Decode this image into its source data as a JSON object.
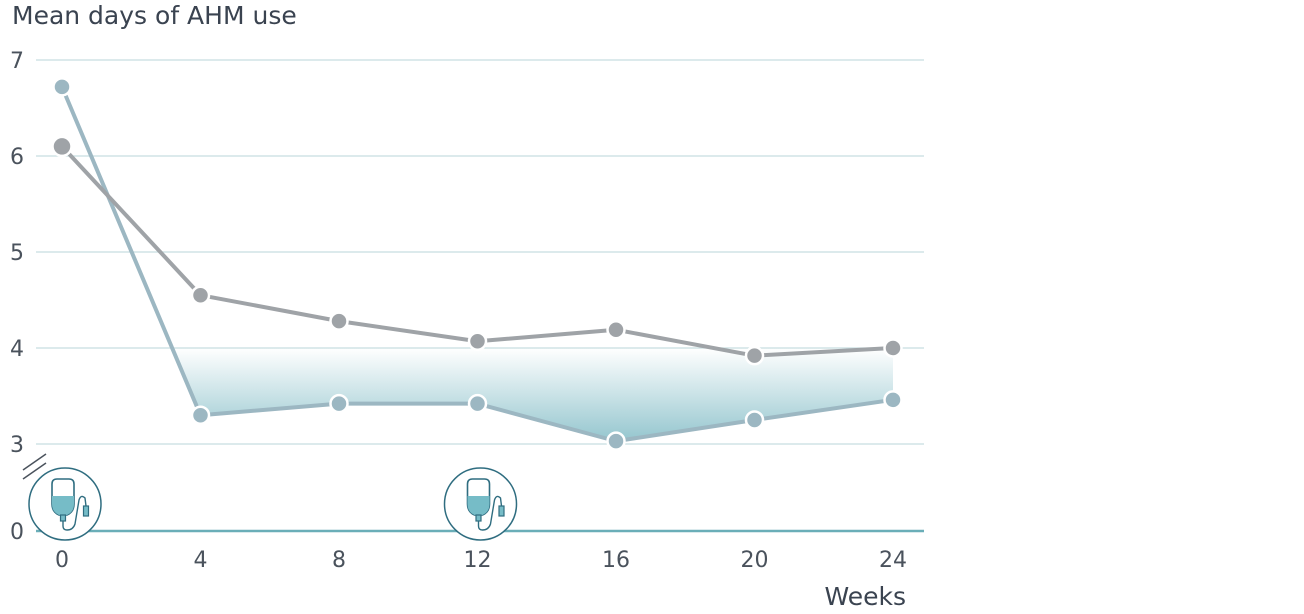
{
  "chart_data": {
    "type": "line",
    "title": "Mean days of AHM use",
    "xlabel": "Weeks",
    "ylabel": "",
    "x": [
      0,
      4,
      8,
      12,
      16,
      20,
      24
    ],
    "x_ticks": [
      "0",
      "4",
      "8",
      "12",
      "16",
      "20",
      "24"
    ],
    "y_ticks": [
      "0",
      "3",
      "4",
      "5",
      "6",
      "7"
    ],
    "ylim": [
      0,
      7
    ],
    "y_axis_break": [
      0,
      3
    ],
    "grid": true,
    "series": [
      {
        "name": "",
        "color": "#9fa3a7",
        "values": [
          6.1,
          4.55,
          4.28,
          4.07,
          4.19,
          3.92,
          4.0
        ]
      },
      {
        "name": "",
        "color": "#9cb7c2",
        "values": [
          6.72,
          3.3,
          3.42,
          3.42,
          3.03,
          3.25,
          3.46
        ]
      }
    ],
    "shaded_area_between_series": {
      "color": "#8fc3cc",
      "from_x": 4,
      "to_x": 24
    },
    "annotations": [
      {
        "icon": "iv-infusion-bag-icon",
        "at_x": 0
      },
      {
        "icon": "iv-infusion-bag-icon",
        "at_x": 12
      }
    ],
    "colors": {
      "grid": "#c7dde0",
      "baseline": "#6aaeb8",
      "icon_stroke": "#2f6d80",
      "icon_fill": "#76bcc7"
    }
  }
}
